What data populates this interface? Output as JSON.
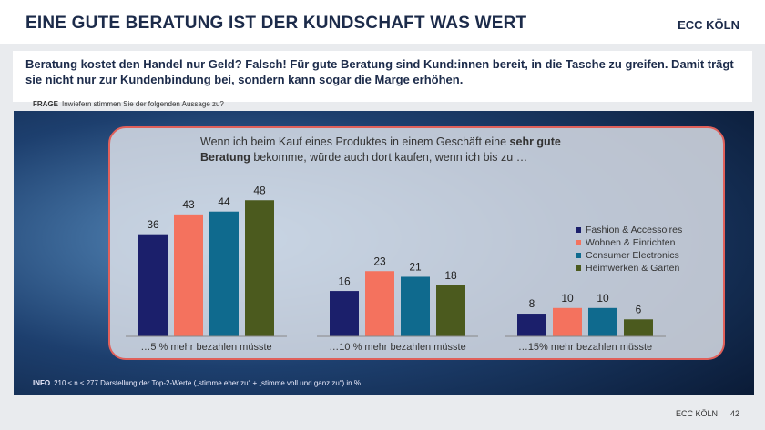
{
  "header": {
    "title": "EINE GUTE BERATUNG IST DER KUNDSCHAFT WAS WERT",
    "brand": "ECC KÖLN"
  },
  "subtitle": "Beratung kostet den Handel nur Geld? Falsch! Für gute Beratung sind Kund:innen bereit, in die Tasche zu greifen. Damit trägt sie nicht nur zur Kundenbindung bei, sondern kann sogar die Marge erhöhen.",
  "question": {
    "label": "FRAGE",
    "text": "Inwiefern stimmen Sie der folgenden Aussage zu?"
  },
  "chart_data": {
    "type": "bar",
    "title": [
      "Wenn ich beim Kauf eines Produktes in einem Geschäft eine ",
      "sehr gute Beratung",
      " bekomme, würde auch dort kaufen, wenn ich bis zu …"
    ],
    "categories": [
      "…5 % mehr bezahlen müsste",
      "…10 % mehr bezahlen müsste",
      "…15% mehr bezahlen müsste"
    ],
    "series": [
      {
        "name": "Fashion & Accessoires",
        "color": "#1b1f6b",
        "values": [
          36,
          16,
          8
        ]
      },
      {
        "name": "Wohnen & Einrichten",
        "color": "#f4725e",
        "values": [
          43,
          23,
          10
        ]
      },
      {
        "name": "Consumer Electronics",
        "color": "#0f6a8e",
        "values": [
          44,
          21,
          10
        ]
      },
      {
        "name": "Heimwerken & Garten",
        "color": "#4b5a1e",
        "values": [
          48,
          18,
          6
        ]
      }
    ],
    "legend": "right"
  },
  "info": {
    "label": "INFO",
    "text": "210 ≤ n ≤ 277 Darstellung der Top-2-Werte („stimme eher zu“ + „stimme voll und ganz zu“) in %"
  },
  "footer": {
    "brand": "ECC KÖLN",
    "page": "42"
  }
}
